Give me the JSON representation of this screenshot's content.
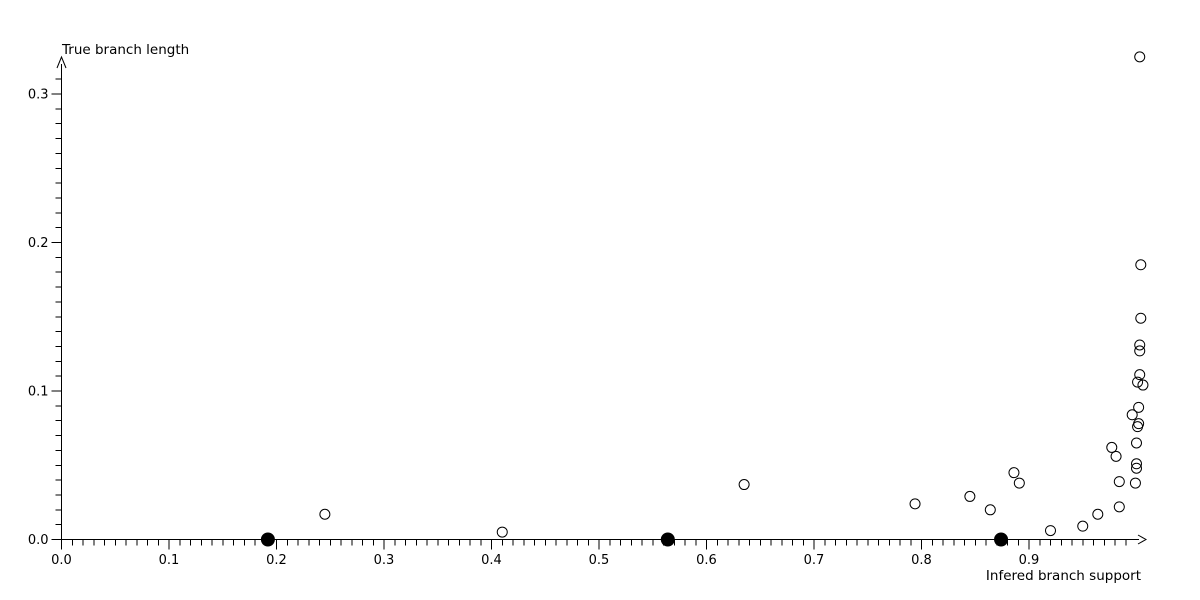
{
  "chart_data": {
    "type": "scatter",
    "title": "",
    "xlabel": "Infered branch support",
    "ylabel": "True branch length",
    "xlim": [
      0.0,
      1.01
    ],
    "ylim": [
      0.0,
      0.33
    ],
    "grid": false,
    "legend": "none",
    "background_color": "#ffffff",
    "axis_color": "#000000",
    "x_axis": {
      "tick_values": [
        0.0,
        0.1,
        0.2,
        0.3,
        0.4,
        0.5,
        0.6,
        0.7,
        0.8,
        0.9
      ],
      "tick_labels": [
        "0.0",
        "0.1",
        "0.2",
        "0.3",
        "0.4",
        "0.5",
        "0.6",
        "0.7",
        "0.8",
        "0.9"
      ],
      "minor_tick_step": 0.01,
      "minor_tick_max": 0.99
    },
    "y_axis": {
      "tick_values": [
        0.0,
        0.1,
        0.2,
        0.3
      ],
      "tick_labels": [
        "0.0",
        "0.1",
        "0.2",
        "0.3"
      ],
      "minor_tick_step": 0.01,
      "minor_tick_max": 0.31
    },
    "series": [
      {
        "name": "open_circles",
        "marker": "open-circle",
        "marker_radius": 5,
        "stroke": "#000000",
        "fill": "none",
        "points": [
          [
            0.245,
            0.017
          ],
          [
            0.41,
            0.005
          ],
          [
            0.635,
            0.037
          ],
          [
            0.794,
            0.024
          ],
          [
            0.845,
            0.029
          ],
          [
            0.864,
            0.02
          ],
          [
            0.886,
            0.045
          ],
          [
            0.891,
            0.038
          ],
          [
            0.92,
            0.006
          ],
          [
            0.95,
            0.009
          ],
          [
            0.964,
            0.017
          ],
          [
            0.977,
            0.062
          ],
          [
            0.981,
            0.056
          ],
          [
            0.984,
            0.039
          ],
          [
            0.984,
            0.022
          ],
          [
            0.996,
            0.084
          ],
          [
            0.999,
            0.038
          ],
          [
            1.0,
            0.048
          ],
          [
            1.0,
            0.051
          ],
          [
            1.0,
            0.065
          ],
          [
            1.001,
            0.076
          ],
          [
            1.002,
            0.078
          ],
          [
            1.002,
            0.089
          ],
          [
            1.001,
            0.106
          ],
          [
            1.006,
            0.104
          ],
          [
            1.003,
            0.111
          ],
          [
            1.003,
            0.127
          ],
          [
            1.003,
            0.131
          ],
          [
            1.004,
            0.149
          ],
          [
            1.004,
            0.185
          ],
          [
            1.003,
            0.325
          ]
        ]
      },
      {
        "name": "filled_circles",
        "marker": "filled-circle",
        "marker_radius": 6.5,
        "stroke": "#000000",
        "fill": "#000000",
        "points": [
          [
            0.192,
            0.0
          ],
          [
            0.564,
            0.0
          ],
          [
            0.874,
            0.0
          ]
        ]
      }
    ]
  }
}
